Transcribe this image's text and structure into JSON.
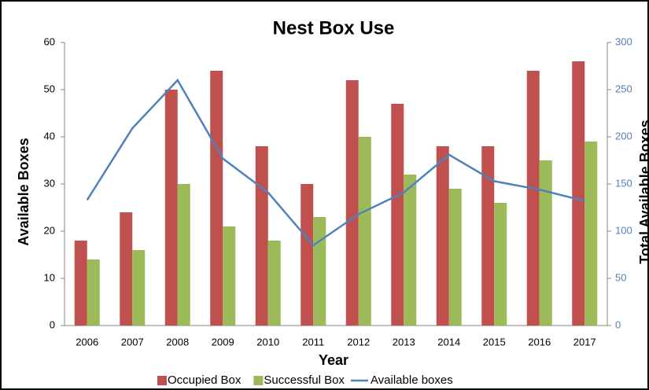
{
  "chart_data": {
    "type": "bar",
    "title": "Nest Box Use",
    "x_label": "Year",
    "y_label": "Available Boxes",
    "y2_label": "Total Available Boxes",
    "categories": [
      "2006",
      "2007",
      "2008",
      "2009",
      "2010",
      "2011",
      "2012",
      "2013",
      "2014",
      "2015",
      "2016",
      "2017"
    ],
    "series": [
      {
        "name": "Occupied Box",
        "color": "#c0504d",
        "type": "bar",
        "values": [
          18,
          24,
          50,
          54,
          38,
          30,
          52,
          47,
          38,
          38,
          54,
          56
        ]
      },
      {
        "name": "Successful Box",
        "color": "#9bbb59",
        "type": "bar",
        "values": [
          14,
          16,
          30,
          21,
          18,
          23,
          40,
          32,
          29,
          26,
          35,
          39
        ]
      },
      {
        "name": "Available boxes",
        "color": "#4f81bd",
        "type": "line",
        "axis": "y2",
        "values": [
          133,
          209,
          260,
          177,
          141,
          85,
          118,
          141,
          181,
          153,
          144,
          132
        ]
      }
    ],
    "ylim": [
      0,
      60
    ],
    "yticks": [
      0,
      10,
      20,
      30,
      40,
      50,
      60
    ],
    "y2lim": [
      0,
      300
    ],
    "y2ticks": [
      0,
      50,
      100,
      150,
      200,
      250,
      300
    ],
    "legend": "bottom",
    "grid": false
  }
}
